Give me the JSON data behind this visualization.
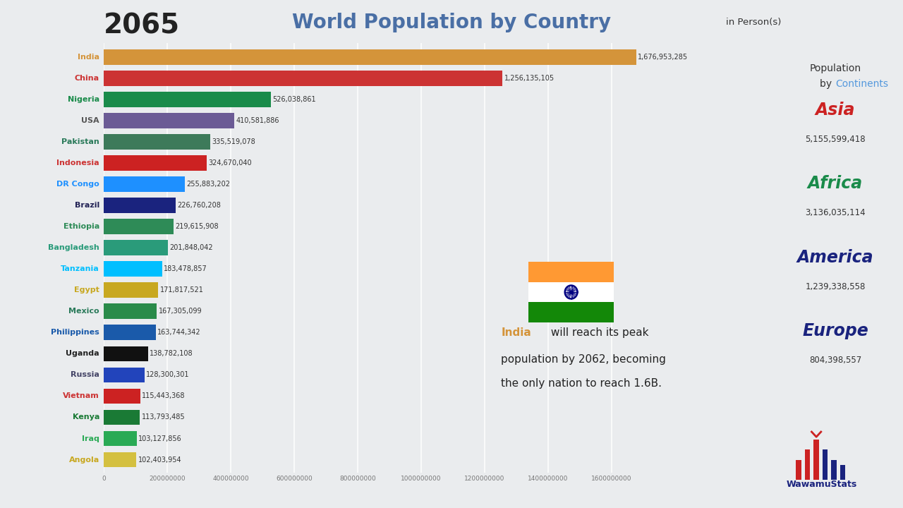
{
  "year": "2065",
  "title": "World Population by Country",
  "subtitle": "in Person(s)",
  "countries": [
    "India",
    "China",
    "Nigeria",
    "USA",
    "Pakistan",
    "Indonesia",
    "DR Congo",
    "Brazil",
    "Ethiopia",
    "Bangladesh",
    "Tanzania",
    "Egypt",
    "Mexico",
    "Philippines",
    "Uganda",
    "Russia",
    "Vietnam",
    "Kenya",
    "Iraq",
    "Angola"
  ],
  "values": [
    1676953285,
    1256135105,
    526038861,
    410581886,
    335519078,
    324670040,
    255883202,
    226760208,
    219615908,
    201848042,
    183478857,
    171817521,
    167305099,
    163744342,
    138782108,
    128300301,
    115443368,
    113793485,
    103127856,
    102403954
  ],
  "bar_colors": [
    "#D4943A",
    "#CC3333",
    "#1A8B4A",
    "#6B5B95",
    "#3D7A5A",
    "#CC2222",
    "#1E90FF",
    "#1A237E",
    "#2E8B57",
    "#2A9B7A",
    "#00BFFF",
    "#C8A820",
    "#2A8B4A",
    "#1A5AAA",
    "#111111",
    "#2244BB",
    "#CC2222",
    "#1A7A35",
    "#2AAA55",
    "#D4C040"
  ],
  "label_colors": [
    "#D4943A",
    "#CC3333",
    "#1A8B4A",
    "#555555",
    "#2A7A5A",
    "#CC3333",
    "#1E90FF",
    "#222255",
    "#2E8B57",
    "#2A9B7A",
    "#00BFFF",
    "#C8A820",
    "#2A7A5A",
    "#1A5AAA",
    "#222222",
    "#444466",
    "#CC3333",
    "#1A7A35",
    "#2AAA55",
    "#C8A820"
  ],
  "value_labels": [
    "1,676,953,285",
    "1,256,135,105",
    "526,038,861",
    "410,581,886",
    "335,519,078",
    "324,670,040",
    "255,883,202",
    "226,760,208",
    "219,615,908",
    "201,848,042",
    "183,478,857",
    "171,817,521",
    "167,305,099",
    "163,744,342",
    "138,782,108",
    "128,300,301",
    "115,443,368",
    "113,793,485",
    "103,127,856",
    "102,403,954"
  ],
  "xlim": [
    0,
    1750000000
  ],
  "xticks": [
    0,
    200000000,
    400000000,
    600000000,
    800000000,
    1000000000,
    1200000000,
    1400000000,
    1600000000
  ],
  "xtick_labels": [
    "0",
    "200000000",
    "400000000",
    "600000000",
    "800000000",
    "1000000000",
    "1200000000",
    "1400000000",
    "1600000000"
  ],
  "background_color": "#eaecee",
  "continents": [
    {
      "name": "Asia",
      "value": "5,155,599,418",
      "color": "#CC2222"
    },
    {
      "name": "Africa",
      "value": "3,136,035,114",
      "color": "#1A8B4A"
    },
    {
      "name": "America",
      "value": "1,239,338,558",
      "color": "#1A237E"
    },
    {
      "name": "Europe",
      "value": "804,398,557",
      "color": "#1A237E"
    }
  ],
  "annotation_india_color": "#D4943A",
  "logo_text": "WawamuStats",
  "logo_color": "#1A237E"
}
